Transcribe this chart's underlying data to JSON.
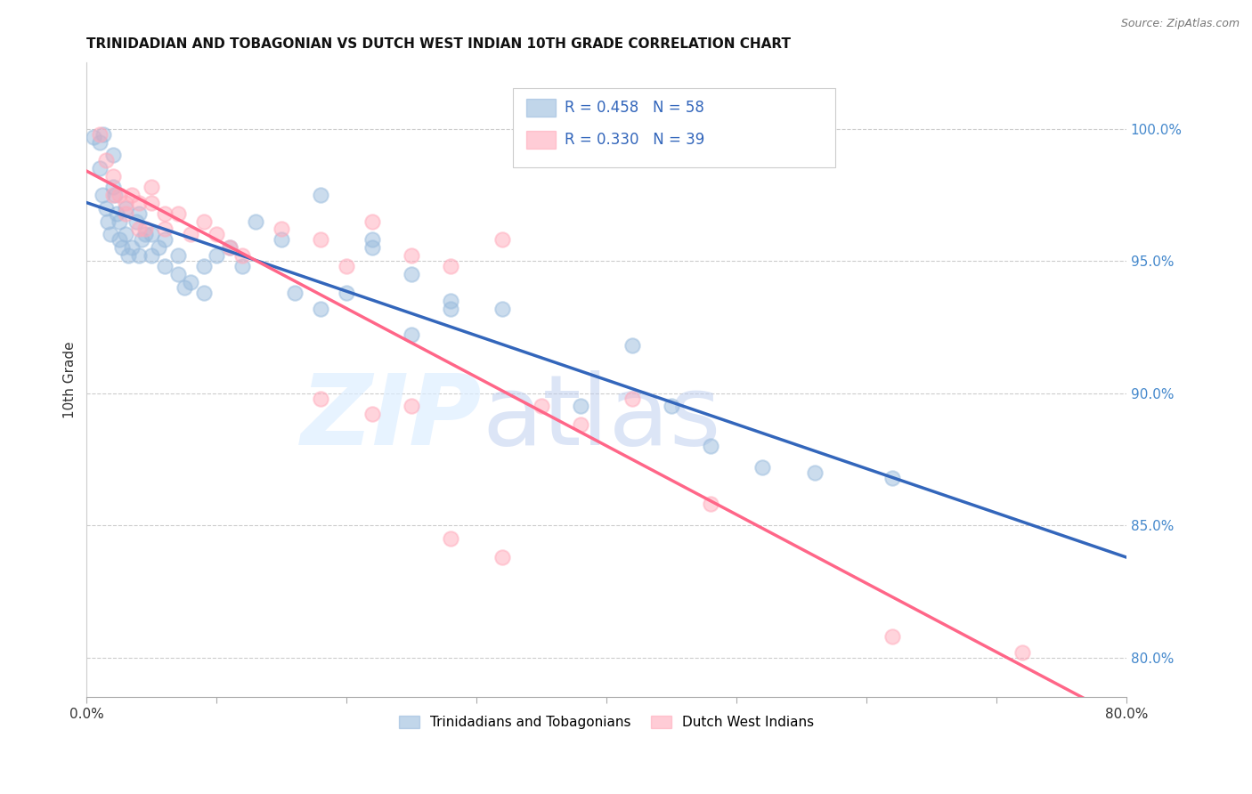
{
  "title": "TRINIDADIAN AND TOBAGONIAN VS DUTCH WEST INDIAN 10TH GRADE CORRELATION CHART",
  "source": "Source: ZipAtlas.com",
  "ylabel": "10th Grade",
  "ylabel_right_labels": [
    "100.0%",
    "95.0%",
    "90.0%",
    "85.0%",
    "80.0%"
  ],
  "ylabel_right_values": [
    1.0,
    0.95,
    0.9,
    0.85,
    0.8
  ],
  "xmin": 0.0,
  "xmax": 0.08,
  "ymin": 0.785,
  "ymax": 1.025,
  "legend_r1": "R = 0.458",
  "legend_n1": "N = 58",
  "legend_r2": "R = 0.330",
  "legend_n2": "N = 39",
  "legend_label1": "Trinidadians and Tobagonians",
  "legend_label2": "Dutch West Indians",
  "color_blue": "#99BBDD",
  "color_pink": "#FFAABB",
  "line_color_blue": "#3366BB",
  "line_color_pink": "#FF6688",
  "blue_x": [
    0.0005,
    0.001,
    0.001,
    0.0012,
    0.0013,
    0.0015,
    0.0016,
    0.0018,
    0.002,
    0.002,
    0.0022,
    0.0023,
    0.0025,
    0.0025,
    0.0027,
    0.003,
    0.003,
    0.0032,
    0.0035,
    0.0038,
    0.004,
    0.004,
    0.0042,
    0.0045,
    0.005,
    0.005,
    0.0055,
    0.006,
    0.006,
    0.007,
    0.007,
    0.0075,
    0.008,
    0.009,
    0.009,
    0.01,
    0.011,
    0.012,
    0.013,
    0.015,
    0.016,
    0.018,
    0.02,
    0.022,
    0.025,
    0.028,
    0.032,
    0.038,
    0.042,
    0.045,
    0.018,
    0.022,
    0.025,
    0.028,
    0.048,
    0.052,
    0.056,
    0.062
  ],
  "blue_y": [
    0.997,
    0.995,
    0.985,
    0.975,
    0.998,
    0.97,
    0.965,
    0.96,
    0.99,
    0.978,
    0.975,
    0.968,
    0.965,
    0.958,
    0.955,
    0.97,
    0.96,
    0.952,
    0.955,
    0.965,
    0.968,
    0.952,
    0.958,
    0.96,
    0.96,
    0.952,
    0.955,
    0.958,
    0.948,
    0.952,
    0.945,
    0.94,
    0.942,
    0.948,
    0.938,
    0.952,
    0.955,
    0.948,
    0.965,
    0.958,
    0.938,
    0.932,
    0.938,
    0.955,
    0.922,
    0.932,
    0.932,
    0.895,
    0.918,
    0.895,
    0.975,
    0.958,
    0.945,
    0.935,
    0.88,
    0.872,
    0.87,
    0.868
  ],
  "pink_x": [
    0.001,
    0.0015,
    0.002,
    0.002,
    0.0025,
    0.003,
    0.003,
    0.0035,
    0.004,
    0.004,
    0.0045,
    0.005,
    0.005,
    0.006,
    0.006,
    0.007,
    0.008,
    0.009,
    0.01,
    0.011,
    0.012,
    0.015,
    0.018,
    0.02,
    0.022,
    0.025,
    0.028,
    0.032,
    0.018,
    0.022,
    0.025,
    0.035,
    0.038,
    0.042,
    0.048,
    0.028,
    0.032,
    0.062,
    0.072
  ],
  "pink_y": [
    0.998,
    0.988,
    0.982,
    0.975,
    0.975,
    0.972,
    0.968,
    0.975,
    0.972,
    0.962,
    0.962,
    0.978,
    0.972,
    0.968,
    0.962,
    0.968,
    0.96,
    0.965,
    0.96,
    0.955,
    0.952,
    0.962,
    0.958,
    0.948,
    0.965,
    0.952,
    0.948,
    0.958,
    0.898,
    0.892,
    0.895,
    0.895,
    0.888,
    0.898,
    0.858,
    0.845,
    0.838,
    0.808,
    0.802
  ]
}
